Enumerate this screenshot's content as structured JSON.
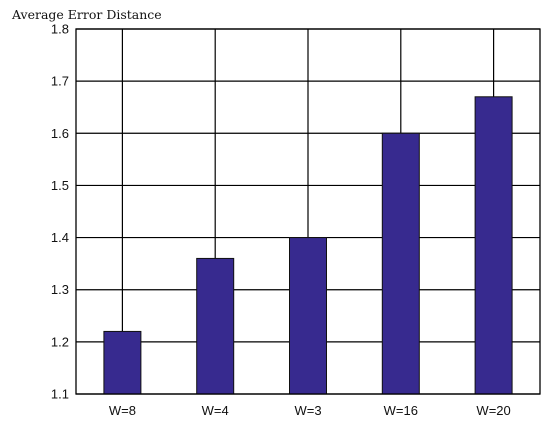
{
  "chart_data": {
    "type": "bar",
    "title": "",
    "xlabel": "",
    "ylabel": "Average Error Distance",
    "categories": [
      "W=8",
      "W=4",
      "W=3",
      "W=16",
      "W=20"
    ],
    "values": [
      1.22,
      1.36,
      1.4,
      1.6,
      1.67
    ],
    "ylim": [
      1.1,
      1.8
    ],
    "yticks": [
      "1.1",
      "1.2",
      "1.3",
      "1.4",
      "1.5",
      "1.6",
      "1.7",
      "1.8"
    ],
    "grid": true,
    "bar_color": "#372A8F",
    "bar_edge_color": "#111111",
    "grid_color": "#000000"
  }
}
